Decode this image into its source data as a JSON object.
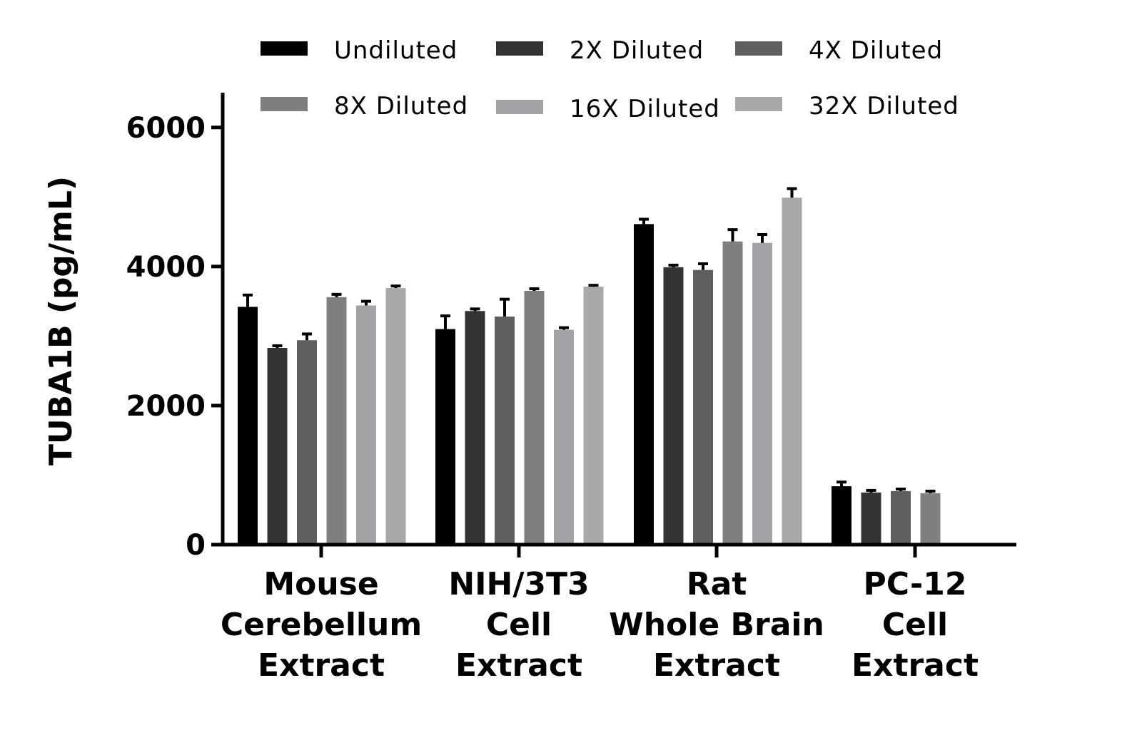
{
  "chart_data": {
    "type": "bar",
    "ylabel": "TUBA1B (pg/mL)",
    "ylim": [
      0,
      6500
    ],
    "yticks": [
      0,
      2000,
      4000,
      6000
    ],
    "categories": [
      [
        "Mouse",
        "Cerebellum",
        "Extract"
      ],
      [
        "NIH/3T3",
        "Cell",
        "Extract"
      ],
      [
        "Rat",
        "Whole Brain",
        "Extract"
      ],
      [
        "PC-12",
        "Cell",
        "Extract"
      ]
    ],
    "series": [
      {
        "name": "Undiluted",
        "color": "#000000",
        "values": [
          3420,
          3100,
          4610,
          840
        ],
        "errors": [
          170,
          190,
          70,
          60
        ]
      },
      {
        "name": "2X Diluted",
        "color": "#333333",
        "values": [
          2830,
          3360,
          3990,
          750
        ],
        "errors": [
          30,
          30,
          30,
          30
        ]
      },
      {
        "name": "4X Diluted",
        "color": "#5f5f5f",
        "values": [
          2940,
          3280,
          3950,
          770
        ],
        "errors": [
          90,
          250,
          90,
          30
        ]
      },
      {
        "name": "8X Diluted",
        "color": "#7f7f7f",
        "values": [
          3560,
          3650,
          4360,
          740
        ],
        "errors": [
          40,
          30,
          170,
          30
        ]
      },
      {
        "name": "16X Diluted",
        "color": "#a3a3a6",
        "values": [
          3440,
          3090,
          4340,
          null
        ],
        "errors": [
          60,
          30,
          120,
          null
        ]
      },
      {
        "name": "32X Diluted",
        "color": "#a9a9a9",
        "values": [
          3690,
          3710,
          4990,
          null
        ],
        "errors": [
          30,
          20,
          130,
          null
        ]
      }
    ],
    "grid": false,
    "legend": "top"
  }
}
